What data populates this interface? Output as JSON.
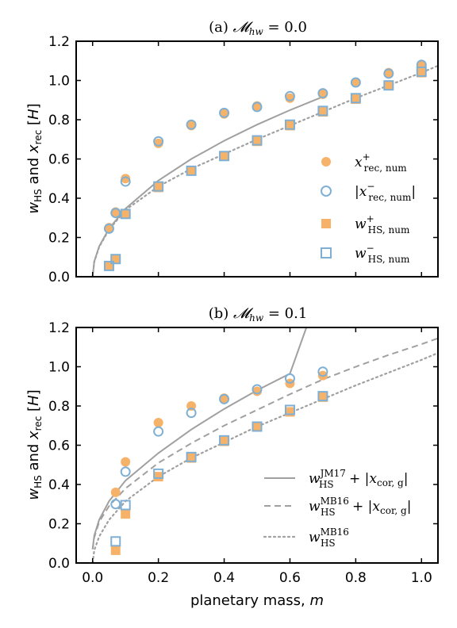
{
  "xlabel": "planetary mass, m",
  "ylabel": "w_HS and x_rec [H]",
  "x_ticks": [
    "0.0",
    "0.2",
    "0.4",
    "0.6",
    "0.8",
    "1.0"
  ],
  "y_ticks": [
    "0.0",
    "0.2",
    "0.4",
    "0.6",
    "0.8",
    "1.0",
    "1.2"
  ],
  "colors": {
    "orange": "#f7b26a",
    "blue": "#7fb0d4",
    "gray": "#a0a0a0"
  },
  "chart_data": [
    {
      "type": "scatter",
      "title": "(a) 𝓜_hw = 0.0",
      "xlim": [
        -0.05,
        1.05
      ],
      "ylim": [
        0,
        1.2
      ],
      "series": [
        {
          "name": "x⁺_rec,num",
          "marker": "filled-circle",
          "color": "#f7b26a",
          "x": [
            0.05,
            0.07,
            0.1,
            0.2,
            0.3,
            0.4,
            0.5,
            0.6,
            0.7,
            0.8,
            0.9,
            1.0
          ],
          "y": [
            0.25,
            0.33,
            0.5,
            0.68,
            0.77,
            0.83,
            0.87,
            0.91,
            0.93,
            0.99,
            1.04,
            1.08
          ]
        },
        {
          "name": "|x⁻_rec,num|",
          "marker": "open-circle",
          "color": "#7fb0d4",
          "x": [
            0.05,
            0.07,
            0.1,
            0.2,
            0.3,
            0.4,
            0.5,
            0.6,
            0.7,
            0.8,
            0.9,
            1.0
          ],
          "y": [
            0.245,
            0.325,
            0.485,
            0.69,
            0.775,
            0.835,
            0.865,
            0.92,
            0.935,
            0.99,
            1.035,
            1.08
          ]
        },
        {
          "name": "w⁺_HS,num",
          "marker": "filled-square",
          "color": "#f7b26a",
          "x": [
            0.05,
            0.07,
            0.1,
            0.2,
            0.3,
            0.4,
            0.5,
            0.6,
            0.7,
            0.8,
            0.9,
            1.0
          ],
          "y": [
            0.055,
            0.09,
            0.32,
            0.455,
            0.54,
            0.615,
            0.69,
            0.77,
            0.84,
            0.905,
            0.975,
            1.04
          ]
        },
        {
          "name": "w⁻_HS,num",
          "marker": "open-square",
          "color": "#7fb0d4",
          "x": [
            0.05,
            0.07,
            0.1,
            0.2,
            0.3,
            0.4,
            0.5,
            0.6,
            0.7,
            0.8,
            0.9,
            1.0
          ],
          "y": [
            0.055,
            0.09,
            0.32,
            0.46,
            0.54,
            0.615,
            0.695,
            0.775,
            0.845,
            0.91,
            0.975,
            1.045
          ]
        }
      ],
      "curves": [
        {
          "style": "solid",
          "x": [
            0.0,
            0.005,
            0.02,
            0.05,
            0.1,
            0.2,
            0.3,
            0.4,
            0.5,
            0.6,
            0.7
          ],
          "y": [
            0.0,
            0.078,
            0.155,
            0.245,
            0.347,
            0.49,
            0.6,
            0.693,
            0.775,
            0.849,
            0.917
          ]
        },
        {
          "style": "dotted",
          "x": [
            0.0,
            0.005,
            0.02,
            0.05,
            0.1,
            0.2,
            0.3,
            0.4,
            0.5,
            0.6,
            0.7,
            0.8,
            0.9,
            1.0,
            1.05
          ],
          "y": [
            0.0,
            0.076,
            0.152,
            0.24,
            0.34,
            0.46,
            0.55,
            0.625,
            0.7,
            0.77,
            0.84,
            0.91,
            0.975,
            1.04,
            1.075
          ]
        }
      ],
      "legend": {
        "position": "right",
        "entries": [
          {
            "text": "x⁺_rec,num",
            "marker": "filled-circle"
          },
          {
            "text": "|x⁻_rec,num|",
            "marker": "open-circle"
          },
          {
            "text": "w⁺_HS,num",
            "marker": "filled-square"
          },
          {
            "text": "w⁻_HS,num",
            "marker": "open-square"
          }
        ]
      }
    },
    {
      "type": "scatter",
      "title": "(b) 𝓜_hw = 0.1",
      "xlim": [
        -0.05,
        1.05
      ],
      "ylim": [
        0,
        1.2
      ],
      "series": [
        {
          "name": "x⁺_rec,num",
          "marker": "filled-circle",
          "color": "#f7b26a",
          "x": [
            0.07,
            0.1,
            0.2,
            0.3,
            0.4,
            0.5,
            0.6,
            0.7
          ],
          "y": [
            0.36,
            0.515,
            0.715,
            0.8,
            0.84,
            0.875,
            0.915,
            0.955
          ]
        },
        {
          "name": "|x⁻_rec,num|",
          "marker": "open-circle",
          "color": "#7fb0d4",
          "x": [
            0.07,
            0.1,
            0.2,
            0.3,
            0.4,
            0.5,
            0.6,
            0.7
          ],
          "y": [
            0.3,
            0.465,
            0.67,
            0.765,
            0.835,
            0.885,
            0.94,
            0.975
          ]
        },
        {
          "name": "w⁺_HS,num",
          "marker": "filled-square",
          "color": "#f7b26a",
          "x": [
            0.07,
            0.1,
            0.2,
            0.3,
            0.4,
            0.5,
            0.6,
            0.7
          ],
          "y": [
            0.065,
            0.25,
            0.44,
            0.535,
            0.62,
            0.695,
            0.77,
            0.845
          ]
        },
        {
          "name": "w⁻_HS,num",
          "marker": "open-square",
          "color": "#7fb0d4",
          "x": [
            0.07,
            0.1,
            0.2,
            0.3,
            0.4,
            0.5,
            0.6,
            0.7
          ],
          "y": [
            0.11,
            0.295,
            0.455,
            0.54,
            0.625,
            0.695,
            0.78,
            0.85
          ]
        }
      ],
      "curves": [
        {
          "style": "solid",
          "x": [
            0.0,
            0.005,
            0.02,
            0.05,
            0.1,
            0.2,
            0.3,
            0.4,
            0.5,
            0.6,
            0.65
          ],
          "y": [
            0.07,
            0.14,
            0.22,
            0.315,
            0.42,
            0.56,
            0.68,
            0.785,
            0.88,
            0.965,
            1.2
          ]
        },
        {
          "style": "dashed",
          "x": [
            0.0,
            0.005,
            0.02,
            0.05,
            0.1,
            0.2,
            0.3,
            0.4,
            0.5,
            0.6,
            0.7,
            0.8,
            0.9,
            1.0,
            1.05
          ],
          "y": [
            0.07,
            0.13,
            0.21,
            0.29,
            0.38,
            0.51,
            0.61,
            0.7,
            0.78,
            0.86,
            0.935,
            1.0,
            1.06,
            1.115,
            1.145
          ]
        },
        {
          "style": "dotted",
          "x": [
            0.0,
            0.005,
            0.02,
            0.05,
            0.1,
            0.2,
            0.3,
            0.4,
            0.5,
            0.6,
            0.7,
            0.8,
            0.9,
            1.0,
            1.05
          ],
          "y": [
            0.0,
            0.065,
            0.135,
            0.22,
            0.315,
            0.44,
            0.535,
            0.615,
            0.695,
            0.765,
            0.835,
            0.905,
            0.97,
            1.035,
            1.07
          ]
        }
      ],
      "legend": {
        "position": "lower right",
        "entries": [
          {
            "line": "solid",
            "base": "w",
            "sub": "HS",
            "sup": "JM17",
            "tail": " + |x",
            "tail_sub": "cor, g",
            "end": "|"
          },
          {
            "line": "dashed",
            "base": "w",
            "sub": "HS",
            "sup": "MB16",
            "tail": " + |x",
            "tail_sub": "cor, g",
            "end": "|"
          },
          {
            "line": "dotted",
            "base": "w",
            "sub": "HS",
            "sup": "MB16",
            "tail": "",
            "tail_sub": "",
            "end": ""
          }
        ]
      }
    }
  ]
}
